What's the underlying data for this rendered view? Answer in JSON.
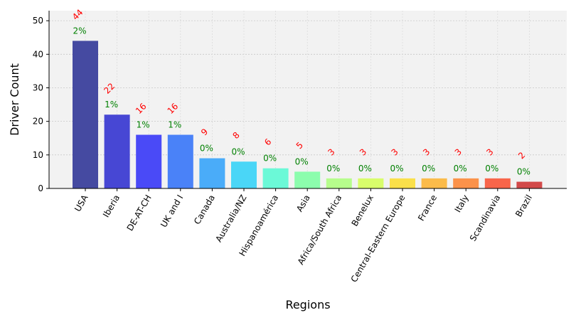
{
  "chart_data": {
    "type": "bar",
    "title": "",
    "xlabel": "Regions",
    "ylabel": "Driver Count",
    "ylim": [
      0,
      53
    ],
    "yticks": [
      0,
      10,
      20,
      30,
      40,
      50
    ],
    "grid": true,
    "categories": [
      "USA",
      "Iberia",
      "DE-AT-CH",
      "UK and I",
      "Canada",
      "Australia/NZ",
      "Hispanoamérica",
      "Asia",
      "Africa/South Africa",
      "Benelux",
      "Central-Eastern Europe",
      "France",
      "Italy",
      "Scandinavia",
      "Brazil"
    ],
    "values": [
      44,
      22,
      16,
      16,
      9,
      8,
      6,
      5,
      3,
      3,
      3,
      3,
      3,
      3,
      2
    ],
    "percent_labels": [
      "2%",
      "1%",
      "1%",
      "1%",
      "0%",
      "0%",
      "0%",
      "0%",
      "0%",
      "0%",
      "0%",
      "0%",
      "0%",
      "0%",
      "0%"
    ],
    "colors": [
      "#454aa1",
      "#4747d4",
      "#4a4af7",
      "#4a82f8",
      "#4aacf9",
      "#4ad6f7",
      "#6bf9d7",
      "#8cfdad",
      "#b6fd8c",
      "#d8fd6b",
      "#fae04a",
      "#fbbb4a",
      "#fb924a",
      "#f8654a",
      "#d24a4a"
    ],
    "count_label_color": "#ff0000",
    "percent_label_color": "#008000"
  }
}
